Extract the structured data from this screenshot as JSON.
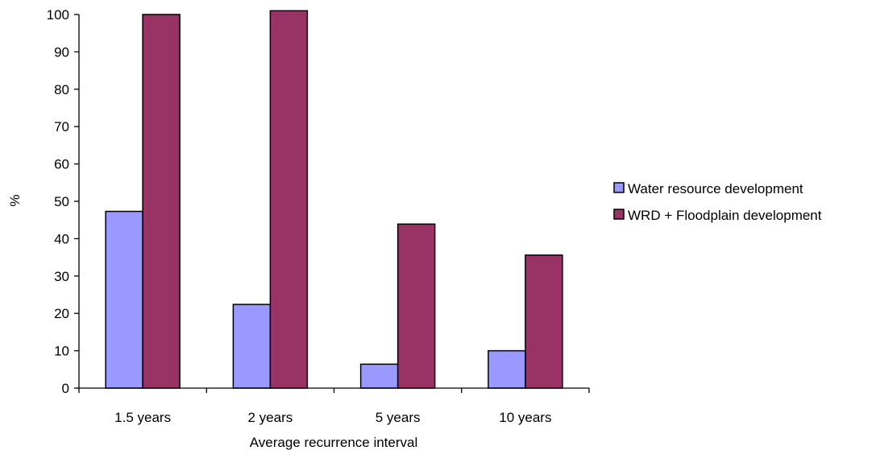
{
  "chart_data": {
    "type": "bar",
    "title": "",
    "xlabel": "Average recurrence interval",
    "ylabel": "%",
    "categories": [
      "1.5 years",
      "2 years",
      "5 years",
      "10 years"
    ],
    "series": [
      {
        "name": "Water resource development",
        "values": [
          47.3,
          22.4,
          6.4,
          10.0
        ],
        "color": "#9999ff"
      },
      {
        "name": "WRD + Floodplain development",
        "values": [
          100,
          101,
          43.9,
          35.6
        ],
        "color": "#993366"
      }
    ],
    "ylim": [
      0,
      100
    ],
    "yticks": [
      0,
      10,
      20,
      30,
      40,
      50,
      60,
      70,
      80,
      90,
      100
    ],
    "grid": false,
    "legend": "right"
  }
}
